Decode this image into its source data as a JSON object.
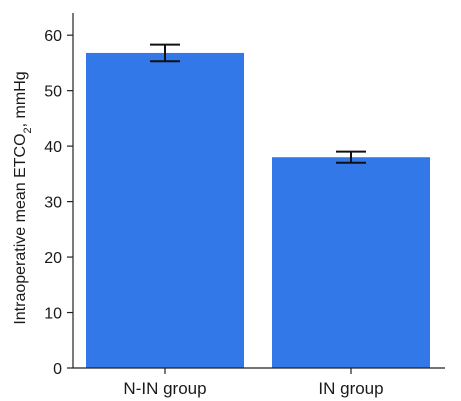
{
  "chart_data": {
    "type": "bar",
    "categories": [
      "N-IN group",
      "IN group"
    ],
    "values": [
      56.8,
      38.0
    ],
    "error": [
      1.5,
      1.0
    ],
    "ylabel_main": "Intraoperative mean ETCO",
    "ylabel_sub": "2",
    "ylabel_unit": ", mmHg",
    "ylim": [
      0,
      64
    ],
    "yticks": [
      0,
      10,
      20,
      30,
      40,
      50,
      60
    ],
    "grid": false,
    "bar_color": "#3378e8",
    "legend": "none"
  }
}
